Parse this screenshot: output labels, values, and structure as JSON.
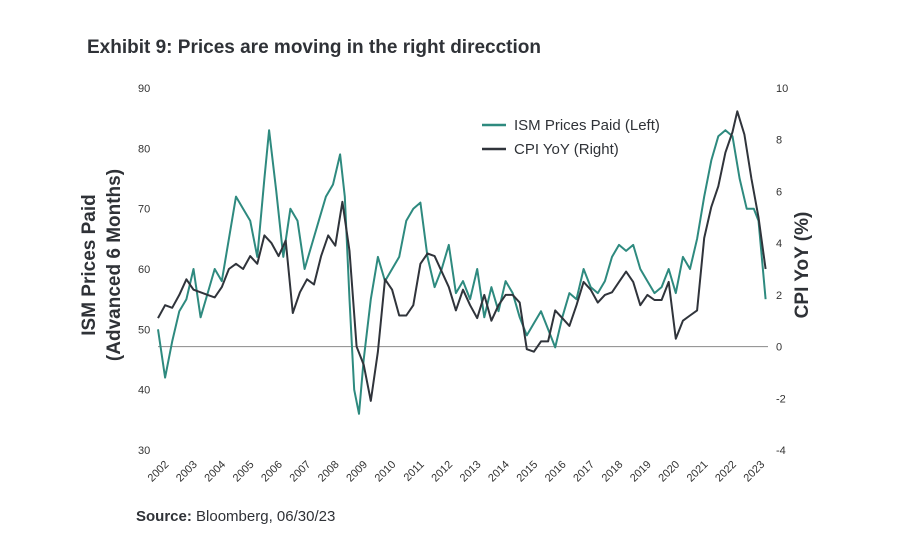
{
  "title": "Exhibit 9: Prices are moving in the right direcction",
  "source": {
    "label": "Source:",
    "text": " Bloomberg, 06/30/23"
  },
  "colors": {
    "ism": "#2e8a7f",
    "cpi": "#30343b",
    "zero_line": "#8a8a8a"
  },
  "chart_data": {
    "type": "line",
    "title": "Exhibit 9: Prices are moving in the right direcction",
    "xlabel": "",
    "ylabel_left": "ISM Prices Paid\n(Advanced 6 Months)",
    "ylabel_right": "CPI YoY (%)",
    "ylim_left": [
      30,
      90
    ],
    "ylim_right": [
      -4,
      10
    ],
    "yticks_left": [
      "90",
      "80",
      "70",
      "60",
      "50",
      "40",
      "30"
    ],
    "yticks_right": [
      "10",
      "8",
      "6",
      "4",
      "2",
      "0",
      "-2",
      "-4"
    ],
    "xticks": [
      "2002",
      "2003",
      "2004",
      "2005",
      "2006",
      "2007",
      "2008",
      "2009",
      "2010",
      "2011",
      "2012",
      "2013",
      "2014",
      "2015",
      "2016",
      "2017",
      "2018",
      "2019",
      "2020",
      "2021",
      "2022",
      "2023"
    ],
    "grid": false,
    "legend_position": "top-right",
    "series": [
      {
        "name": "ISM Prices Paid (Left)",
        "axis": "left",
        "x": [
          "2002-01",
          "2002-04",
          "2002-07",
          "2002-10",
          "2003-01",
          "2003-04",
          "2003-07",
          "2003-10",
          "2004-01",
          "2004-04",
          "2004-07",
          "2004-10",
          "2005-01",
          "2005-04",
          "2005-07",
          "2005-10",
          "2005-12",
          "2006-03",
          "2006-06",
          "2006-09",
          "2006-12",
          "2007-03",
          "2007-06",
          "2007-09",
          "2007-12",
          "2008-03",
          "2008-06",
          "2008-08",
          "2008-10",
          "2008-12",
          "2009-02",
          "2009-04",
          "2009-07",
          "2009-10",
          "2010-01",
          "2010-04",
          "2010-07",
          "2010-10",
          "2011-01",
          "2011-04",
          "2011-07",
          "2011-10",
          "2012-01",
          "2012-04",
          "2012-07",
          "2012-10",
          "2013-01",
          "2013-04",
          "2013-07",
          "2013-10",
          "2014-01",
          "2014-04",
          "2014-07",
          "2014-10",
          "2015-01",
          "2015-04",
          "2015-07",
          "2015-10",
          "2016-01",
          "2016-04",
          "2016-07",
          "2016-10",
          "2017-01",
          "2017-04",
          "2017-07",
          "2017-10",
          "2018-01",
          "2018-04",
          "2018-07",
          "2018-10",
          "2019-01",
          "2019-04",
          "2019-07",
          "2019-10",
          "2020-01",
          "2020-04",
          "2020-07",
          "2020-10",
          "2021-01",
          "2021-04",
          "2021-07",
          "2021-10",
          "2022-01",
          "2022-04",
          "2022-07",
          "2022-10",
          "2023-01",
          "2023-03",
          "2023-06"
        ],
        "values": [
          50,
          42,
          48,
          53,
          55,
          60,
          52,
          56,
          60,
          58,
          65,
          72,
          70,
          68,
          62,
          75,
          83,
          73,
          62,
          70,
          68,
          60,
          64,
          68,
          72,
          74,
          79,
          72,
          55,
          40,
          36,
          45,
          55,
          62,
          58,
          60,
          62,
          68,
          70,
          71,
          62,
          57,
          60,
          64,
          56,
          58,
          55,
          60,
          52,
          57,
          53,
          58,
          56,
          52,
          49,
          51,
          53,
          50,
          47,
          52,
          56,
          55,
          60,
          57,
          56,
          58,
          62,
          64,
          63,
          64,
          60,
          58,
          56,
          57,
          60,
          56,
          62,
          60,
          65,
          72,
          78,
          82,
          83,
          82,
          75,
          70,
          70,
          68,
          55
        ]
      },
      {
        "name": "CPI YoY (Right)",
        "axis": "right",
        "x": [
          "2002-01",
          "2002-04",
          "2002-07",
          "2002-10",
          "2003-01",
          "2003-04",
          "2003-07",
          "2003-10",
          "2004-01",
          "2004-04",
          "2004-07",
          "2004-10",
          "2005-01",
          "2005-04",
          "2005-07",
          "2005-10",
          "2006-01",
          "2006-04",
          "2006-07",
          "2006-10",
          "2007-01",
          "2007-04",
          "2007-07",
          "2007-10",
          "2008-01",
          "2008-04",
          "2008-07",
          "2008-10",
          "2009-01",
          "2009-04",
          "2009-07",
          "2009-10",
          "2010-01",
          "2010-04",
          "2010-07",
          "2010-10",
          "2011-01",
          "2011-04",
          "2011-07",
          "2011-10",
          "2012-01",
          "2012-04",
          "2012-07",
          "2012-10",
          "2013-01",
          "2013-04",
          "2013-07",
          "2013-10",
          "2014-01",
          "2014-04",
          "2014-07",
          "2014-10",
          "2015-01",
          "2015-04",
          "2015-07",
          "2015-10",
          "2016-01",
          "2016-04",
          "2016-07",
          "2016-10",
          "2017-01",
          "2017-04",
          "2017-07",
          "2017-10",
          "2018-01",
          "2018-04",
          "2018-07",
          "2018-10",
          "2019-01",
          "2019-04",
          "2019-07",
          "2019-10",
          "2020-01",
          "2020-04",
          "2020-07",
          "2020-10",
          "2021-01",
          "2021-04",
          "2021-07",
          "2021-10",
          "2022-01",
          "2022-04",
          "2022-06",
          "2022-09",
          "2022-12",
          "2023-03",
          "2023-06"
        ],
        "values": [
          1.1,
          1.6,
          1.5,
          2.0,
          2.6,
          2.2,
          2.1,
          2.0,
          1.9,
          2.3,
          3.0,
          3.2,
          3.0,
          3.5,
          3.2,
          4.3,
          4.0,
          3.5,
          4.1,
          1.3,
          2.1,
          2.6,
          2.4,
          3.5,
          4.3,
          3.9,
          5.6,
          3.7,
          0.0,
          -0.7,
          -2.1,
          -0.2,
          2.6,
          2.2,
          1.2,
          1.2,
          1.6,
          3.2,
          3.6,
          3.5,
          2.9,
          2.3,
          1.4,
          2.2,
          1.6,
          1.1,
          2.0,
          1.0,
          1.6,
          2.0,
          2.0,
          1.7,
          -0.1,
          -0.2,
          0.2,
          0.2,
          1.4,
          1.1,
          0.8,
          1.6,
          2.5,
          2.2,
          1.7,
          2.0,
          2.1,
          2.5,
          2.9,
          2.5,
          1.6,
          2.0,
          1.8,
          1.8,
          2.5,
          0.3,
          1.0,
          1.2,
          1.4,
          4.2,
          5.4,
          6.2,
          7.5,
          8.3,
          9.1,
          8.2,
          6.5,
          5.0,
          3.0
        ]
      }
    ]
  }
}
